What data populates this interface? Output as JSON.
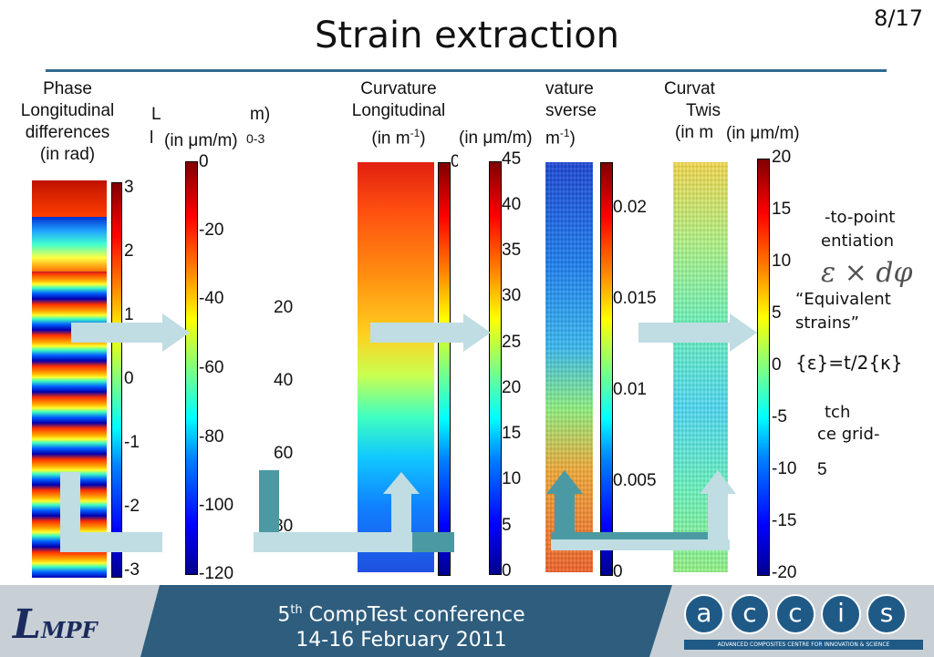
{
  "slide": {
    "title": "Strain extraction",
    "page_number": "8/17"
  },
  "panels": {
    "phase": {
      "line1": "Phase",
      "line2": "Longitudinal",
      "line3": "differences",
      "line4": "(in rad)"
    },
    "disp": {
      "line1": "L",
      "line2": "m)",
      "unit": "(in μm/m)",
      "exp": "0-3"
    },
    "curv_long": {
      "line1": "Curvature",
      "line2": "Longitudinal",
      "line3": "(in m",
      "sup": "-1",
      "close": ")"
    },
    "strain1": {
      "unit": "(in μm/m)"
    },
    "curv_trans": {
      "line1": "vature",
      "line2": "sverse",
      "line3": "m",
      "sup": "-1",
      "close": ")"
    },
    "curv_twist": {
      "line1": "Curvat",
      "line2": "Twis",
      "line3": "(in m",
      "unit2": "(in μm/m)"
    }
  },
  "ticks": {
    "phase": [
      "3",
      "2",
      "1",
      "0",
      "-1",
      "-2",
      "-3"
    ],
    "disp": [
      "0",
      "-20",
      "-40",
      "-60",
      "-80",
      "-100",
      "-120"
    ],
    "disp_partial": [
      "20",
      "40",
      "60",
      "80"
    ],
    "strain1": [
      "45",
      "40",
      "35",
      "30",
      "25",
      "20",
      "15",
      "10",
      "5",
      "0"
    ],
    "curv_long_partial": [
      "0"
    ],
    "curv_trans": [
      "0.02",
      "0.015",
      "0.01",
      "0.005",
      "0"
    ],
    "strain2": [
      "20",
      "15",
      "10",
      "5",
      "0",
      "-5",
      "-10",
      "-15",
      "-20"
    ],
    "strain2_partial": [
      "5"
    ]
  },
  "notes": {
    "point_line1": "-to-point",
    "point_line2": "entiation",
    "equiv_line1": "“Equivalent",
    "equiv_line2": "strains”",
    "formula": "{ε}=t/2{κ}",
    "patch_line1": "tch",
    "patch_line2": "ce grid-"
  },
  "footer": {
    "conf_sup": "th",
    "conf_num": "5",
    "conf_name": " CompTest conference",
    "dates": "14-16 February 2011",
    "logo_left": "LMPF",
    "logo_right_letters": [
      "a",
      "c",
      "c",
      "i",
      "s"
    ],
    "logo_right_caption": "ADVANCED COMPOSITES CENTRE FOR INNOVATION & SCIENCE"
  },
  "colors": {
    "rule": "#2f6a8f",
    "footer": "#2e5d7e",
    "arrow": "#bfdde3",
    "teal": "#4b9aa3"
  }
}
